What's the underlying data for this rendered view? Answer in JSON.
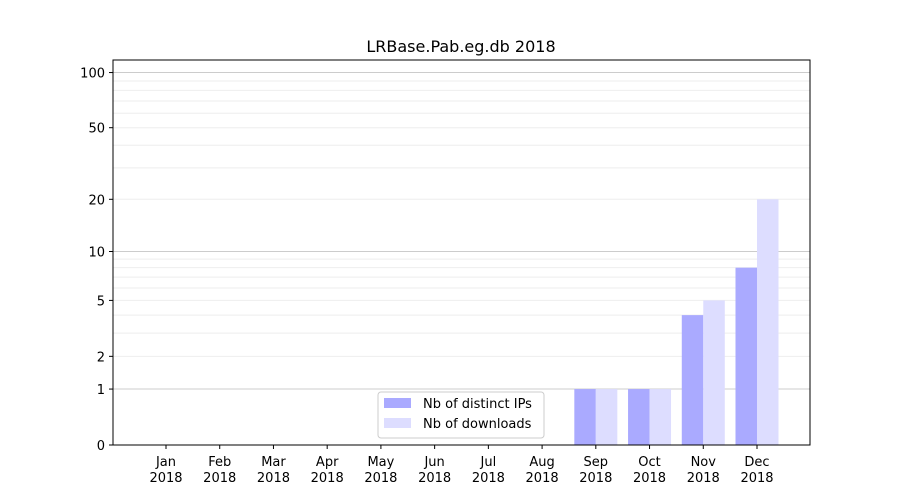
{
  "chart_data": {
    "type": "bar",
    "title": "LRBase.Pab.eg.db 2018",
    "xlabel": "",
    "ylabel": "",
    "yscale": "log(1+y)",
    "ylim": [
      0,
      117
    ],
    "yticks": [
      0,
      1,
      2,
      5,
      10,
      20,
      50,
      100
    ],
    "grid": true,
    "legend_position": "bottom-center",
    "categories": [
      [
        "Jan",
        "2018"
      ],
      [
        "Feb",
        "2018"
      ],
      [
        "Mar",
        "2018"
      ],
      [
        "Apr",
        "2018"
      ],
      [
        "May",
        "2018"
      ],
      [
        "Jun",
        "2018"
      ],
      [
        "Jul",
        "2018"
      ],
      [
        "Aug",
        "2018"
      ],
      [
        "Sep",
        "2018"
      ],
      [
        "Oct",
        "2018"
      ],
      [
        "Nov",
        "2018"
      ],
      [
        "Dec",
        "2018"
      ]
    ],
    "series": [
      {
        "name": "Nb of distinct IPs",
        "color": "#aaaaff",
        "values": [
          0,
          0,
          0,
          0,
          0,
          0,
          0,
          0,
          1,
          1,
          4,
          8
        ]
      },
      {
        "name": "Nb of downloads",
        "color": "#ddddff",
        "values": [
          0,
          0,
          0,
          0,
          0,
          0,
          0,
          0,
          1,
          1,
          5,
          20
        ]
      }
    ]
  }
}
